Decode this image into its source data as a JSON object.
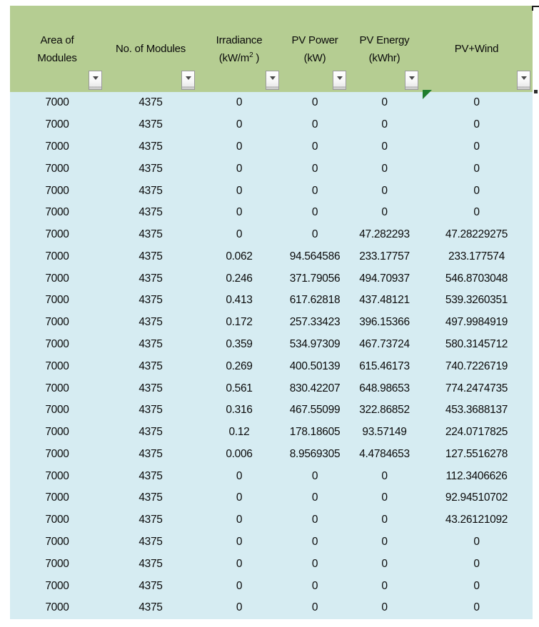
{
  "colors": {
    "header_bg": "#b5cd92",
    "data_bg": "#d6ecf2",
    "error_triangle": "#1e7d2e",
    "filter_button_face": "#f4f4f4"
  },
  "table": {
    "columns": [
      {
        "id": "area-of-modules",
        "line1": "Area of",
        "line2": "Modules"
      },
      {
        "id": "no-of-modules",
        "line1": "No. of Modules"
      },
      {
        "id": "irradiance",
        "line1": "Irradiance",
        "line2": "(kW/m",
        "sup": "2",
        "line2post": " )"
      },
      {
        "id": "pv-power",
        "line1": "PV Power",
        "line2": "(kW)"
      },
      {
        "id": "pv-energy",
        "line1": "PV Energy",
        "line2": "(kWhr)"
      },
      {
        "id": "pv-wind",
        "line1": "PV+Wind"
      }
    ],
    "rows": [
      [
        "7000",
        "4375",
        "0",
        "0",
        "0",
        "0"
      ],
      [
        "7000",
        "4375",
        "0",
        "0",
        "0",
        "0"
      ],
      [
        "7000",
        "4375",
        "0",
        "0",
        "0",
        "0"
      ],
      [
        "7000",
        "4375",
        "0",
        "0",
        "0",
        "0"
      ],
      [
        "7000",
        "4375",
        "0",
        "0",
        "0",
        "0"
      ],
      [
        "7000",
        "4375",
        "0",
        "0",
        "0",
        "0"
      ],
      [
        "7000",
        "4375",
        "0",
        "0",
        "47.282293",
        "47.28229275"
      ],
      [
        "7000",
        "4375",
        "0.062",
        "94.564586",
        "233.17757",
        "233.177574"
      ],
      [
        "7000",
        "4375",
        "0.246",
        "371.79056",
        "494.70937",
        "546.8703048"
      ],
      [
        "7000",
        "4375",
        "0.413",
        "617.62818",
        "437.48121",
        "539.3260351"
      ],
      [
        "7000",
        "4375",
        "0.172",
        "257.33423",
        "396.15366",
        "497.9984919"
      ],
      [
        "7000",
        "4375",
        "0.359",
        "534.97309",
        "467.73724",
        "580.3145712"
      ],
      [
        "7000",
        "4375",
        "0.269",
        "400.50139",
        "615.46173",
        "740.7226719"
      ],
      [
        "7000",
        "4375",
        "0.561",
        "830.42207",
        "648.98653",
        "774.2474735"
      ],
      [
        "7000",
        "4375",
        "0.316",
        "467.55099",
        "322.86852",
        "453.3688137"
      ],
      [
        "7000",
        "4375",
        "0.12",
        "178.18605",
        "93.57149",
        "224.0717825"
      ],
      [
        "7000",
        "4375",
        "0.006",
        "8.9569305",
        "4.4784653",
        "127.5516278"
      ],
      [
        "7000",
        "4375",
        "0",
        "0",
        "0",
        "112.3406626"
      ],
      [
        "7000",
        "4375",
        "0",
        "0",
        "0",
        "92.94510702"
      ],
      [
        "7000",
        "4375",
        "0",
        "0",
        "0",
        "43.26121092"
      ],
      [
        "7000",
        "4375",
        "0",
        "0",
        "0",
        "0"
      ],
      [
        "7000",
        "4375",
        "0",
        "0",
        "0",
        "0"
      ],
      [
        "7000",
        "4375",
        "0",
        "0",
        "0",
        "0"
      ],
      [
        "7000",
        "4375",
        "0",
        "0",
        "0",
        "0"
      ]
    ]
  }
}
